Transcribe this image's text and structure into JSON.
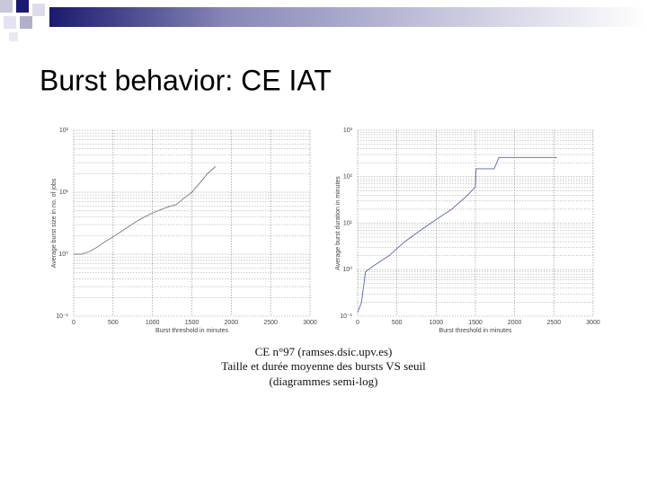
{
  "title": "Burst behavior: CE IAT",
  "caption": [
    "CE n°97 (ramses.dsic.upv.es)",
    "Taille et durée moyenne des bursts VS seuil",
    "(diagrammes semi-log)"
  ],
  "chart_data": [
    {
      "type": "line",
      "xlabel": "Burst threshold in minutes",
      "ylabel": "Average burst size in no. of jobs",
      "x": [
        0,
        100,
        200,
        300,
        400,
        500,
        600,
        700,
        800,
        900,
        1000,
        1100,
        1200,
        1300,
        1400,
        1500,
        1600,
        1700,
        1800
      ],
      "values": [
        1,
        1,
        1.1,
        1.3,
        1.6,
        1.9,
        2.3,
        2.8,
        3.4,
        4,
        4.6,
        5.2,
        5.8,
        6.3,
        8,
        10,
        14,
        20,
        26
      ],
      "color": "#777777",
      "xlim": [
        0,
        3000
      ],
      "xticks": [
        0,
        500,
        1000,
        1500,
        2000,
        2500,
        3000
      ],
      "ylim": [
        0.1,
        100
      ],
      "yscale": "log",
      "yticks": [
        {
          "value": 0.1,
          "label": "10⁻¹"
        },
        {
          "value": 1,
          "label": "10⁰"
        },
        {
          "value": 10,
          "label": "10¹"
        },
        {
          "value": 100,
          "label": "10²"
        }
      ],
      "grid": true
    },
    {
      "type": "line",
      "xlabel": "Burst threshold in minutes",
      "ylabel": "Average burst duration in minutes",
      "x": [
        0,
        50,
        100,
        200,
        400,
        600,
        800,
        1000,
        1200,
        1400,
        1500,
        1510,
        1740,
        1800,
        2540
      ],
      "values": [
        0.12,
        0.2,
        0.9,
        1.2,
        2,
        4,
        7,
        12,
        20,
        40,
        60,
        148,
        148,
        260,
        260
      ],
      "color": "#5566aa",
      "xlim": [
        0,
        3000
      ],
      "xticks": [
        0,
        500,
        1000,
        1500,
        2000,
        2500,
        3000
      ],
      "ylim": [
        0.1,
        1000
      ],
      "yscale": "log",
      "yticks": [
        {
          "value": 0.1,
          "label": "10⁻¹"
        },
        {
          "value": 1,
          "label": "10⁰"
        },
        {
          "value": 10,
          "label": "10¹"
        },
        {
          "value": 100,
          "label": "10²"
        },
        {
          "value": 1000,
          "label": "10³"
        }
      ],
      "grid": true
    }
  ]
}
